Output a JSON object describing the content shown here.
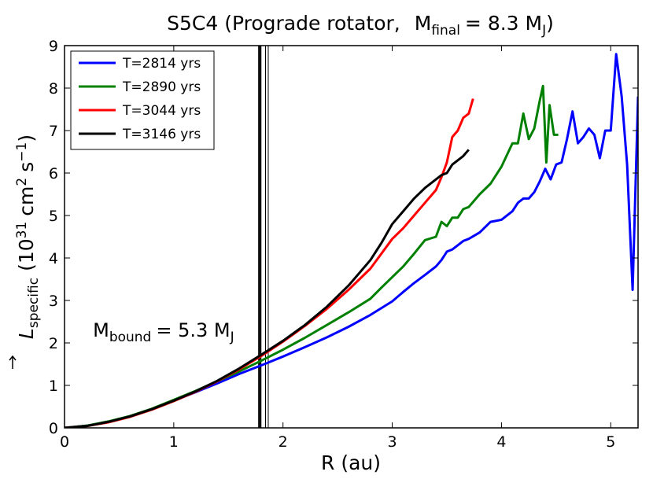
{
  "chart_data": {
    "type": "line",
    "title": {
      "prefix": "S5C4 (Prograde rotator,",
      "mass_symbol": "M",
      "mass_sub": "final",
      "mass_value": "= 8.3 M",
      "mass_unit_sub": "J",
      "suffix": ")"
    },
    "xlabel": "R (au)",
    "ylabel": {
      "symbol": "L",
      "symbol_sub": "specific",
      "units_open": "(10",
      "units_exp": "31",
      "units_mid": "cm",
      "units_exp2": "2",
      "units_s": "s",
      "units_exp3": "−1",
      "units_close": ")"
    },
    "xlim": [
      0,
      5.25
    ],
    "ylim": [
      0,
      9
    ],
    "xticks": [
      {
        "value": 0,
        "label": "0"
      },
      {
        "value": 1,
        "label": "1"
      },
      {
        "value": 2,
        "label": "2"
      },
      {
        "value": 3,
        "label": "3"
      },
      {
        "value": 4,
        "label": "4"
      },
      {
        "value": 5,
        "label": "5"
      }
    ],
    "yticks": [
      {
        "value": 0,
        "label": "0"
      },
      {
        "value": 1,
        "label": "1"
      },
      {
        "value": 2,
        "label": "2"
      },
      {
        "value": 3,
        "label": "3"
      },
      {
        "value": 4,
        "label": "4"
      },
      {
        "value": 5,
        "label": "5"
      },
      {
        "value": 6,
        "label": "6"
      },
      {
        "value": 7,
        "label": "7"
      },
      {
        "value": 8,
        "label": "8"
      },
      {
        "value": 9,
        "label": "9"
      }
    ],
    "grid": false,
    "legend_position": "top-left",
    "annotation": {
      "symbol": "M",
      "symbol_sub": "bound",
      "value": "= 5.3 M",
      "unit_sub": "J",
      "anchor_x": 0.26,
      "anchor_y": 2.15
    },
    "vlines": [
      {
        "x": 1.78,
        "color": "#000000",
        "width": 2
      },
      {
        "x": 1.795,
        "color": "#000000",
        "width": 2
      },
      {
        "x": 1.84,
        "color": "#000000",
        "width": 1
      },
      {
        "x": 1.865,
        "color": "#000000",
        "width": 1
      }
    ],
    "series": [
      {
        "name": "T=2814 yrs",
        "color": "#0000ff",
        "x": [
          0.0,
          0.2,
          0.4,
          0.6,
          0.8,
          1.0,
          1.2,
          1.4,
          1.6,
          1.8,
          2.0,
          2.2,
          2.4,
          2.6,
          2.8,
          3.0,
          3.1,
          3.2,
          3.3,
          3.4,
          3.45,
          3.5,
          3.55,
          3.6,
          3.65,
          3.7,
          3.8,
          3.9,
          4.0,
          4.1,
          4.15,
          4.2,
          4.25,
          4.3,
          4.35,
          4.4,
          4.45,
          4.5,
          4.55,
          4.6,
          4.65,
          4.7,
          4.75,
          4.8,
          4.85,
          4.9,
          4.95,
          5.0,
          5.05,
          5.1,
          5.15,
          5.2,
          5.25
        ],
        "y": [
          0.0,
          0.05,
          0.14,
          0.27,
          0.44,
          0.64,
          0.84,
          1.05,
          1.27,
          1.47,
          1.68,
          1.9,
          2.13,
          2.38,
          2.66,
          2.98,
          3.2,
          3.41,
          3.6,
          3.8,
          3.95,
          4.15,
          4.2,
          4.3,
          4.4,
          4.45,
          4.6,
          4.85,
          4.9,
          5.1,
          5.3,
          5.4,
          5.4,
          5.55,
          5.8,
          6.1,
          5.85,
          6.2,
          6.25,
          6.8,
          7.45,
          6.7,
          6.85,
          7.05,
          6.9,
          6.35,
          7.0,
          7.0,
          8.8,
          7.8,
          6.2,
          3.25,
          7.8
        ]
      },
      {
        "name": "T=2890 yrs",
        "color": "#008000",
        "x": [
          0.0,
          0.2,
          0.4,
          0.6,
          0.8,
          1.0,
          1.2,
          1.4,
          1.6,
          1.8,
          2.0,
          2.2,
          2.4,
          2.6,
          2.8,
          2.9,
          3.0,
          3.1,
          3.2,
          3.3,
          3.4,
          3.45,
          3.5,
          3.55,
          3.6,
          3.65,
          3.7,
          3.8,
          3.9,
          4.0,
          4.1,
          4.15,
          4.2,
          4.25,
          4.3,
          4.35,
          4.38,
          4.41,
          4.44,
          4.48,
          4.52
        ],
        "y": [
          0.0,
          0.05,
          0.15,
          0.28,
          0.45,
          0.66,
          0.87,
          1.1,
          1.33,
          1.58,
          1.84,
          2.12,
          2.42,
          2.72,
          3.04,
          3.3,
          3.55,
          3.8,
          4.1,
          4.42,
          4.5,
          4.85,
          4.75,
          4.95,
          4.95,
          5.15,
          5.2,
          5.5,
          5.75,
          6.15,
          6.7,
          6.7,
          7.4,
          6.8,
          7.05,
          7.7,
          8.05,
          6.25,
          7.6,
          6.9,
          6.9
        ]
      },
      {
        "name": "T=3044 yrs",
        "color": "#ff0000",
        "x": [
          0.0,
          0.2,
          0.4,
          0.6,
          0.8,
          1.0,
          1.2,
          1.4,
          1.6,
          1.8,
          2.0,
          2.2,
          2.4,
          2.6,
          2.8,
          2.9,
          3.0,
          3.1,
          3.2,
          3.3,
          3.4,
          3.45,
          3.5,
          3.55,
          3.6,
          3.65,
          3.7,
          3.74
        ],
        "y": [
          0.0,
          0.04,
          0.13,
          0.26,
          0.43,
          0.63,
          0.85,
          1.1,
          1.38,
          1.69,
          2.03,
          2.4,
          2.8,
          3.25,
          3.75,
          4.1,
          4.45,
          4.7,
          5.0,
          5.3,
          5.6,
          5.9,
          6.25,
          6.85,
          7.0,
          7.3,
          7.4,
          7.75
        ]
      },
      {
        "name": "T=3146 yrs",
        "color": "#000000",
        "x": [
          0.0,
          0.2,
          0.4,
          0.6,
          0.8,
          1.0,
          1.2,
          1.4,
          1.6,
          1.8,
          2.0,
          2.2,
          2.4,
          2.6,
          2.8,
          2.9,
          3.0,
          3.1,
          3.2,
          3.3,
          3.4,
          3.45,
          3.5,
          3.55,
          3.6,
          3.65,
          3.7
        ],
        "y": [
          0.0,
          0.04,
          0.14,
          0.27,
          0.44,
          0.64,
          0.86,
          1.11,
          1.4,
          1.72,
          2.05,
          2.42,
          2.85,
          3.35,
          3.95,
          4.35,
          4.8,
          5.1,
          5.4,
          5.65,
          5.85,
          5.95,
          6.0,
          6.2,
          6.3,
          6.4,
          6.55
        ]
      }
    ]
  }
}
